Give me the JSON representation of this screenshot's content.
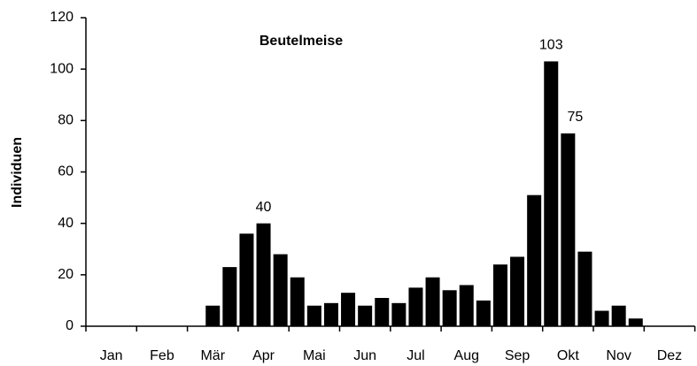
{
  "chart_data": {
    "type": "bar",
    "title": "Beutelmeise",
    "y_label": "Individuen",
    "categories": [
      null,
      "Jan",
      null,
      null,
      "Feb",
      null,
      null,
      "Mär",
      null,
      null,
      "Apr",
      null,
      null,
      "Mai",
      null,
      null,
      "Jun",
      null,
      null,
      "Jul",
      null,
      null,
      "Aug",
      null,
      null,
      "Sep",
      null,
      null,
      "Okt",
      null,
      null,
      "Nov",
      null,
      null,
      "Dez",
      null
    ],
    "values": [
      0,
      0,
      0,
      0,
      0,
      0,
      0,
      8,
      23,
      36,
      40,
      28,
      19,
      8,
      9,
      13,
      8,
      11,
      9,
      15,
      19,
      14,
      16,
      10,
      24,
      27,
      51,
      103,
      75,
      29,
      6,
      8,
      3,
      0,
      0,
      0
    ],
    "value_labels": [
      null,
      null,
      null,
      null,
      null,
      null,
      null,
      null,
      null,
      null,
      "40",
      null,
      null,
      null,
      null,
      null,
      null,
      null,
      null,
      null,
      null,
      null,
      null,
      null,
      null,
      null,
      null,
      "103",
      "75",
      null,
      null,
      null,
      null,
      null,
      null,
      null
    ],
    "color": "#000000",
    "ylim": [
      0,
      120
    ],
    "yticks": [
      0,
      20,
      40,
      60,
      80,
      100,
      120
    ],
    "grid": false
  }
}
